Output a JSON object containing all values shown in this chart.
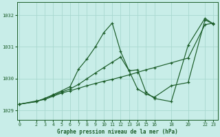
{
  "background_color": "#c8ede8",
  "grid_color": "#a8d8d0",
  "line_color": "#1a5c28",
  "title": "Graphe pression niveau de la mer (hPa)",
  "yticks": [
    1029,
    1030,
    1031,
    1032
  ],
  "xticks": [
    0,
    2,
    3,
    4,
    5,
    6,
    7,
    8,
    9,
    10,
    11,
    12,
    13,
    14,
    15,
    16,
    18,
    20,
    22,
    23
  ],
  "xlim": [
    -0.3,
    23.5
  ],
  "ylim": [
    1028.7,
    1032.4
  ],
  "series": [
    {
      "x": [
        0,
        2,
        3,
        4,
        5,
        6,
        7,
        8,
        9,
        10,
        11,
        12,
        13,
        14,
        15,
        16,
        18,
        20,
        22,
        23
      ],
      "y": [
        1029.2,
        1029.3,
        1029.35,
        1029.45,
        1029.55,
        1029.62,
        1029.7,
        1029.78,
        1029.85,
        1029.92,
        1029.98,
        1030.05,
        1030.12,
        1030.2,
        1030.28,
        1030.35,
        1030.5,
        1030.65,
        1031.7,
        1031.75
      ]
    },
    {
      "x": [
        0,
        2,
        3,
        4,
        5,
        6,
        7,
        8,
        9,
        10,
        11,
        12,
        13,
        14,
        15,
        16,
        18,
        20,
        22,
        23
      ],
      "y": [
        1029.2,
        1029.28,
        1029.38,
        1029.48,
        1029.58,
        1029.68,
        1029.82,
        1030.0,
        1030.18,
        1030.35,
        1030.52,
        1030.68,
        1030.25,
        1029.68,
        1029.52,
        1029.42,
        1029.78,
        1029.88,
        1031.85,
        1031.72
      ]
    },
    {
      "x": [
        0,
        2,
        3,
        4,
        5,
        6,
        7,
        8,
        9,
        10,
        11,
        12,
        13,
        14,
        15,
        16,
        18,
        20,
        22,
        23
      ],
      "y": [
        1029.2,
        1029.28,
        1029.38,
        1029.5,
        1029.62,
        1029.75,
        1030.3,
        1030.62,
        1031.0,
        1031.45,
        1031.75,
        1030.85,
        1030.25,
        1030.28,
        1029.58,
        1029.38,
        1029.28,
        1031.05,
        1031.9,
        1031.72
      ]
    }
  ]
}
